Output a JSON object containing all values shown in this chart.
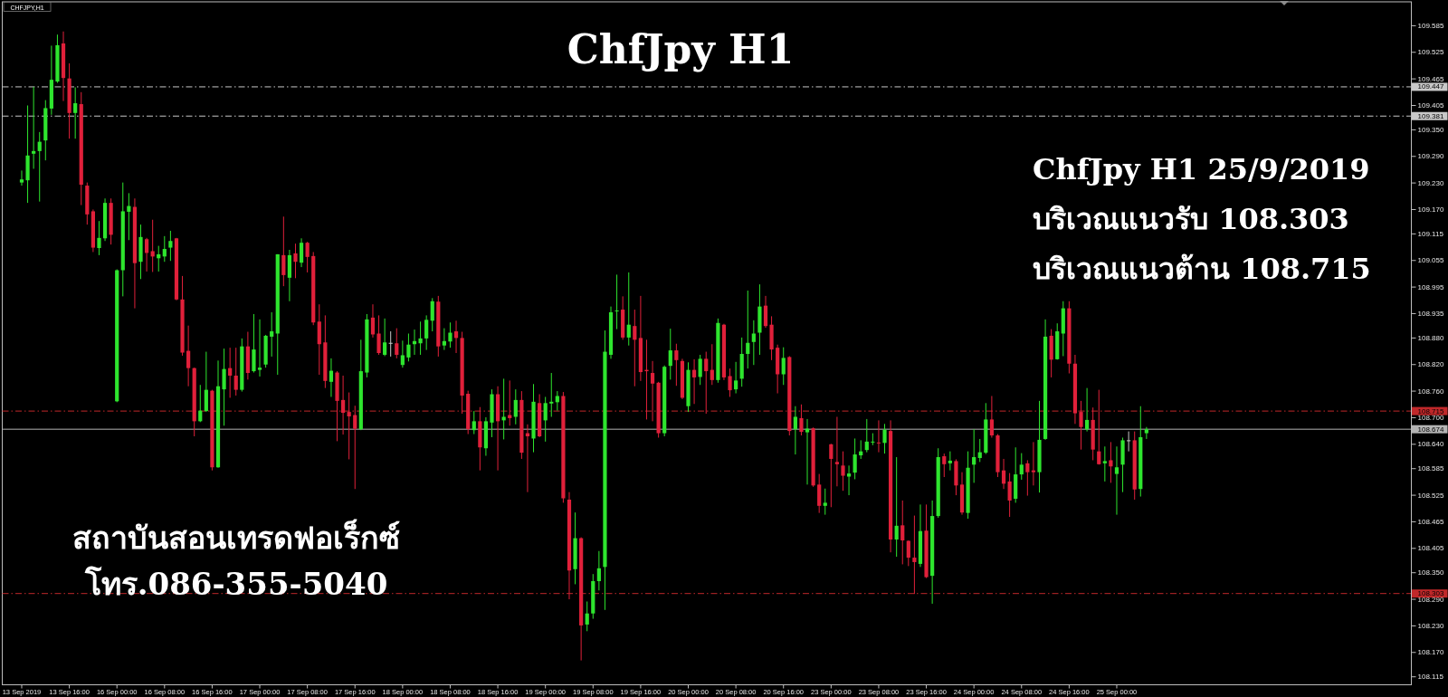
{
  "chart_data": {
    "type": "candlestick",
    "title": "ChfJpy H1",
    "categories": [
      "13 Sep 2019",
      null,
      null,
      null,
      null,
      null,
      null,
      null,
      "13 Sep 16:00",
      null,
      null,
      null,
      null,
      null,
      null,
      null,
      "16 Sep 00:00",
      null,
      null,
      null,
      null,
      null,
      null,
      null,
      "16 Sep 08:00",
      null,
      null,
      null,
      null,
      null,
      null,
      null,
      "16 Sep 16:00",
      null,
      null,
      null,
      null,
      null,
      null,
      null,
      "17 Sep 00:00",
      null,
      null,
      null,
      null,
      null,
      null,
      null,
      "17 Sep 08:00",
      null,
      null,
      null,
      null,
      null,
      null,
      null,
      "17 Sep 16:00",
      null,
      null,
      null,
      null,
      null,
      null,
      null,
      "18 Sep 00:00",
      null,
      null,
      null,
      null,
      null,
      null,
      null,
      "18 Sep 08:00",
      null,
      null,
      null,
      null,
      null,
      null,
      null,
      "18 Sep 16:00",
      null,
      null,
      null,
      null,
      null,
      null,
      null,
      "19 Sep 00:00",
      null,
      null,
      null,
      null,
      null,
      null,
      null,
      "19 Sep 08:00",
      null,
      null,
      null,
      null,
      null,
      null,
      null,
      "19 Sep 16:00",
      null,
      null,
      null,
      null,
      null,
      null,
      null,
      "20 Sep 00:00",
      null,
      null,
      null,
      null,
      null,
      null,
      null,
      "20 Sep 08:00",
      null,
      null,
      null,
      null,
      null,
      null,
      null,
      "20 Sep 16:00",
      null,
      null,
      null,
      null,
      null,
      null,
      null,
      "23 Sep 00:00",
      null,
      null,
      null,
      null,
      null,
      null,
      null,
      "23 Sep 08:00",
      null,
      null,
      null,
      null,
      null,
      null,
      null,
      "23 Sep 16:00",
      null,
      null,
      null,
      null,
      null,
      null,
      null,
      "24 Sep 00:00",
      null,
      null,
      null,
      null,
      null,
      null,
      null,
      "24 Sep 08:00",
      null,
      null,
      null,
      null,
      null,
      null,
      null,
      "24 Sep 16:00",
      null,
      null,
      null,
      null,
      null,
      null,
      null,
      "25 Sep 00:00",
      null,
      null,
      null,
      null,
      null,
      null,
      null,
      null,
      null,
      null,
      null,
      null,
      null,
      null,
      null,
      null,
      null,
      null,
      null,
      null,
      null,
      null,
      null,
      null,
      null,
      null,
      null,
      null,
      null,
      null,
      null,
      null,
      null,
      null,
      null,
      null,
      null,
      null,
      null,
      null,
      null,
      null,
      null,
      null,
      null,
      null,
      null,
      null,
      null
    ],
    "ohlc": [
      [
        109.231,
        109.258,
        109.224,
        109.238
      ],
      [
        109.236,
        109.405,
        109.185,
        109.292
      ],
      [
        109.296,
        109.447,
        109.262,
        109.302
      ],
      [
        109.302,
        109.345,
        109.188,
        109.323
      ],
      [
        109.326,
        109.417,
        109.281,
        109.399
      ],
      [
        109.398,
        109.54,
        109.384,
        109.463
      ],
      [
        109.459,
        109.565,
        109.456,
        109.541
      ],
      [
        109.545,
        109.572,
        109.415,
        109.467
      ],
      [
        109.466,
        109.5,
        109.33,
        109.388
      ],
      [
        109.388,
        109.446,
        109.33,
        109.41
      ],
      [
        109.408,
        109.435,
        109.18,
        109.226
      ],
      [
        109.224,
        109.231,
        109.136,
        109.159
      ],
      [
        109.166,
        109.17,
        109.074,
        109.084
      ],
      [
        109.083,
        109.144,
        109.067,
        109.106
      ],
      [
        109.105,
        109.195,
        109.099,
        109.185
      ],
      [
        109.185,
        109.195,
        109.091,
        109.113
      ],
      [
        108.737,
        109.035,
        108.735,
        109.033
      ],
      [
        109.033,
        109.231,
        108.974,
        109.166
      ],
      [
        109.165,
        109.207,
        109.101,
        109.178
      ],
      [
        109.176,
        109.195,
        108.947,
        109.049
      ],
      [
        109.052,
        109.136,
        109.013,
        109.108
      ],
      [
        109.103,
        109.106,
        109.03,
        109.072
      ],
      [
        109.076,
        109.147,
        109.029,
        109.064
      ],
      [
        109.06,
        109.088,
        109.03,
        109.069
      ],
      [
        109.064,
        109.11,
        109.052,
        109.081
      ],
      [
        109.084,
        109.122,
        109.054,
        109.099
      ],
      [
        109.105,
        109.106,
        108.965,
        108.967
      ],
      [
        108.967,
        109.02,
        108.84,
        108.847
      ],
      [
        108.851,
        108.908,
        108.771,
        108.812
      ],
      [
        108.812,
        108.813,
        108.658,
        108.692
      ],
      [
        108.692,
        108.774,
        108.69,
        108.716
      ],
      [
        108.715,
        108.849,
        108.713,
        108.763
      ],
      [
        108.761,
        108.763,
        108.581,
        108.588
      ],
      [
        108.588,
        108.829,
        108.587,
        108.771
      ],
      [
        108.764,
        108.856,
        108.682,
        108.81
      ],
      [
        108.812,
        108.858,
        108.745,
        108.795
      ],
      [
        108.795,
        108.858,
        108.75,
        108.763
      ],
      [
        108.763,
        108.879,
        108.759,
        108.861
      ],
      [
        108.861,
        108.894,
        108.786,
        108.801
      ],
      [
        108.805,
        108.934,
        108.802,
        108.854
      ],
      [
        108.808,
        108.922,
        108.793,
        108.813
      ],
      [
        108.82,
        108.887,
        108.813,
        108.885
      ],
      [
        108.883,
        108.938,
        108.838,
        108.895
      ],
      [
        108.89,
        109.069,
        108.797,
        109.069
      ],
      [
        109.067,
        109.154,
        108.997,
        109.022
      ],
      [
        109.016,
        109.079,
        108.963,
        109.067
      ],
      [
        109.071,
        109.093,
        109.015,
        109.052
      ],
      [
        109.05,
        109.105,
        109.04,
        109.095
      ],
      [
        109.095,
        109.097,
        109.028,
        109.063
      ],
      [
        109.065,
        109.074,
        108.909,
        108.915
      ],
      [
        108.917,
        108.956,
        108.797,
        108.866
      ],
      [
        108.87,
        108.931,
        108.767,
        108.783
      ],
      [
        108.781,
        108.834,
        108.747,
        108.806
      ],
      [
        108.802,
        108.805,
        108.647,
        108.738
      ],
      [
        108.74,
        108.795,
        108.662,
        108.711
      ],
      [
        108.713,
        108.757,
        108.606,
        108.703
      ],
      [
        108.706,
        108.727,
        108.539,
        108.675
      ],
      [
        108.674,
        108.876,
        108.672,
        108.805
      ],
      [
        108.802,
        108.934,
        108.791,
        108.922
      ],
      [
        108.926,
        108.956,
        108.881,
        108.888
      ],
      [
        108.89,
        108.931,
        108.842,
        108.846
      ],
      [
        108.842,
        108.924,
        108.839,
        108.87
      ],
      [
        108.868,
        108.895,
        108.838,
        108.868
      ],
      [
        108.868,
        108.902,
        108.834,
        108.842
      ],
      [
        108.819,
        108.874,
        108.813,
        108.841
      ],
      [
        108.836,
        108.89,
        108.827,
        108.865
      ],
      [
        108.866,
        108.899,
        108.842,
        108.873
      ],
      [
        108.868,
        108.917,
        108.842,
        108.879
      ],
      [
        108.879,
        108.931,
        108.853,
        108.921
      ],
      [
        108.919,
        108.97,
        108.895,
        108.963
      ],
      [
        108.962,
        108.975,
        108.838,
        108.861
      ],
      [
        108.863,
        108.902,
        108.853,
        108.873
      ],
      [
        108.872,
        108.915,
        108.858,
        108.892
      ],
      [
        108.895,
        108.919,
        108.846,
        108.88
      ],
      [
        108.88,
        108.894,
        108.709,
        108.75
      ],
      [
        108.754,
        108.761,
        108.663,
        108.674
      ],
      [
        108.672,
        108.715,
        108.663,
        108.692
      ],
      [
        108.692,
        108.724,
        108.581,
        108.633
      ],
      [
        108.631,
        108.701,
        108.614,
        108.692
      ],
      [
        108.689,
        108.764,
        108.656,
        108.753
      ],
      [
        108.753,
        108.771,
        108.581,
        108.692
      ],
      [
        108.694,
        108.788,
        108.651,
        108.702
      ],
      [
        108.706,
        108.784,
        108.682,
        108.699
      ],
      [
        108.702,
        108.764,
        108.685,
        108.74
      ],
      [
        108.74,
        108.76,
        108.607,
        108.621
      ],
      [
        108.665,
        108.685,
        108.532,
        108.658
      ],
      [
        108.653,
        108.776,
        108.622,
        108.736
      ],
      [
        108.733,
        108.753,
        108.656,
        108.658
      ],
      [
        108.694,
        108.747,
        108.646,
        108.733
      ],
      [
        108.732,
        108.801,
        108.702,
        108.736
      ],
      [
        108.735,
        108.76,
        108.716,
        108.749
      ],
      [
        108.749,
        108.758,
        108.508,
        108.518
      ],
      [
        108.515,
        108.532,
        108.29,
        108.355
      ],
      [
        108.358,
        108.486,
        108.324,
        108.428
      ],
      [
        108.428,
        108.43,
        108.152,
        108.231
      ],
      [
        108.233,
        108.285,
        108.218,
        108.258
      ],
      [
        108.258,
        108.347,
        108.246,
        108.331
      ],
      [
        108.331,
        108.399,
        108.31,
        108.36
      ],
      [
        108.363,
        108.897,
        108.266,
        108.849
      ],
      [
        108.842,
        108.951,
        108.833,
        108.938
      ],
      [
        108.94,
        109.023,
        108.9,
        108.942
      ],
      [
        108.944,
        108.974,
        108.876,
        108.881
      ],
      [
        108.881,
        109.028,
        108.863,
        108.91
      ],
      [
        108.907,
        108.944,
        108.771,
        108.876
      ],
      [
        108.88,
        108.975,
        108.783,
        108.803
      ],
      [
        108.808,
        108.876,
        108.696,
        108.805
      ],
      [
        108.801,
        108.828,
        108.692,
        108.777
      ],
      [
        108.779,
        108.781,
        108.655,
        108.665
      ],
      [
        108.665,
        108.818,
        108.658,
        108.815
      ],
      [
        108.817,
        108.901,
        108.786,
        108.852
      ],
      [
        108.852,
        108.867,
        108.772,
        108.83
      ],
      [
        108.828,
        108.833,
        108.742,
        108.745
      ],
      [
        108.726,
        108.825,
        108.713,
        108.808
      ],
      [
        108.808,
        108.832,
        108.731,
        108.791
      ],
      [
        108.792,
        108.842,
        108.774,
        108.833
      ],
      [
        108.833,
        108.849,
        108.709,
        108.805
      ],
      [
        108.808,
        108.866,
        108.774,
        108.785
      ],
      [
        108.785,
        108.924,
        108.779,
        108.914
      ],
      [
        108.91,
        108.912,
        108.785,
        108.791
      ],
      [
        108.794,
        108.811,
        108.747,
        108.762
      ],
      [
        108.764,
        108.826,
        108.755,
        108.784
      ],
      [
        108.788,
        108.881,
        108.77,
        108.844
      ],
      [
        108.844,
        108.987,
        108.811,
        108.869
      ],
      [
        108.871,
        108.92,
        108.819,
        108.89
      ],
      [
        108.892,
        109.001,
        108.842,
        108.951
      ],
      [
        108.953,
        108.975,
        108.903,
        108.907
      ],
      [
        108.91,
        108.929,
        108.83,
        108.854
      ],
      [
        108.858,
        108.865,
        108.755,
        108.798
      ],
      [
        108.798,
        108.859,
        108.774,
        108.835
      ],
      [
        108.837,
        108.839,
        108.66,
        108.67
      ],
      [
        108.674,
        108.726,
        108.617,
        108.702
      ],
      [
        108.699,
        108.73,
        108.66,
        108.668
      ],
      [
        108.667,
        108.697,
        108.549,
        108.675
      ],
      [
        108.676,
        108.678,
        108.544,
        108.547
      ],
      [
        108.549,
        108.573,
        108.485,
        108.501
      ],
      [
        108.501,
        108.54,
        108.481,
        108.508
      ],
      [
        108.64,
        108.641,
        108.498,
        108.607
      ],
      [
        108.6,
        108.702,
        108.545,
        108.595
      ],
      [
        108.592,
        108.624,
        108.535,
        108.569
      ],
      [
        108.567,
        108.592,
        108.525,
        108.574
      ],
      [
        108.576,
        108.653,
        108.561,
        108.617
      ],
      [
        108.615,
        108.649,
        108.607,
        108.624
      ],
      [
        108.627,
        108.697,
        108.622,
        108.646
      ],
      [
        108.644,
        108.665,
        108.638,
        108.646
      ],
      [
        108.644,
        108.694,
        108.622,
        108.642
      ],
      [
        108.643,
        108.686,
        108.619,
        108.673
      ],
      [
        108.67,
        108.694,
        108.396,
        108.425
      ],
      [
        108.425,
        108.611,
        108.386,
        108.456
      ],
      [
        108.457,
        108.513,
        108.369,
        108.423
      ],
      [
        108.422,
        108.423,
        108.365,
        108.384
      ],
      [
        108.384,
        108.479,
        108.302,
        108.374
      ],
      [
        108.37,
        108.504,
        108.363,
        108.444
      ],
      [
        108.445,
        108.504,
        108.338,
        108.34
      ],
      [
        108.343,
        108.513,
        108.28,
        108.478
      ],
      [
        108.478,
        108.631,
        108.474,
        108.611
      ],
      [
        108.613,
        108.619,
        108.566,
        108.595
      ],
      [
        108.597,
        108.624,
        108.581,
        108.603
      ],
      [
        108.602,
        108.606,
        108.525,
        108.547
      ],
      [
        108.549,
        108.577,
        108.481,
        108.486
      ],
      [
        108.485,
        108.624,
        108.472,
        108.587
      ],
      [
        108.594,
        108.674,
        108.553,
        108.611
      ],
      [
        108.609,
        108.652,
        108.6,
        108.622
      ],
      [
        108.621,
        108.733,
        108.618,
        108.696
      ],
      [
        108.696,
        108.749,
        108.655,
        108.66
      ],
      [
        108.66,
        108.663,
        108.566,
        108.577
      ],
      [
        108.581,
        108.607,
        108.539,
        108.551
      ],
      [
        108.556,
        108.575,
        108.476,
        108.513
      ],
      [
        108.517,
        108.633,
        108.508,
        108.572
      ],
      [
        108.572,
        108.62,
        108.56,
        108.594
      ],
      [
        108.597,
        108.604,
        108.524,
        108.577
      ],
      [
        108.581,
        108.645,
        108.547,
        108.577
      ],
      [
        108.577,
        108.738,
        108.531,
        108.65
      ],
      [
        108.652,
        108.922,
        108.65,
        108.883
      ],
      [
        108.885,
        108.9,
        108.791,
        108.831
      ],
      [
        108.832,
        108.913,
        108.831,
        108.895
      ],
      [
        108.89,
        108.963,
        108.839,
        108.947
      ],
      [
        108.947,
        108.963,
        108.8,
        108.822
      ],
      [
        108.822,
        108.842,
        108.686,
        108.71
      ],
      [
        108.713,
        108.738,
        108.628,
        108.679
      ],
      [
        108.674,
        108.767,
        108.669,
        108.695
      ],
      [
        108.695,
        108.723,
        108.604,
        108.628
      ],
      [
        108.624,
        108.763,
        108.594,
        108.595
      ],
      [
        108.597,
        108.635,
        108.556,
        108.602
      ],
      [
        108.604,
        108.645,
        108.553,
        108.59
      ],
      [
        108.573,
        108.635,
        108.481,
        108.588
      ],
      [
        108.594,
        108.655,
        108.532,
        108.649
      ],
      [
        108.648,
        108.669,
        108.624,
        108.648
      ],
      [
        108.649,
        108.669,
        108.515,
        108.538
      ],
      [
        108.539,
        108.726,
        108.522,
        108.656
      ],
      [
        108.665,
        108.679,
        108.652,
        108.674
      ],
      null,
      null,
      null,
      null,
      null,
      null,
      null,
      null,
      null,
      null,
      null,
      null,
      null,
      null,
      null,
      null,
      null,
      null,
      null,
      null,
      null,
      null,
      null,
      null,
      null,
      null,
      null,
      null,
      null,
      null,
      null,
      null,
      null,
      null,
      null,
      null,
      null,
      null,
      null,
      null,
      null,
      null,
      null,
      null
    ],
    "colors": [
      "#2ee52e",
      "#2ee52e",
      "#2ee52e",
      "#2ee52e",
      "#2ee52e",
      "#2ee52e",
      "#2ee52e",
      "#e0203a",
      "#e0203a",
      "#2ee52e",
      "#e0203a",
      "#e0203a",
      "#e0203a",
      "#2ee52e",
      "#2ee52e",
      "#e0203a",
      "#2ee52e",
      "#2ee52e",
      "#2ee52e",
      "#e0203a",
      "#2ee52e",
      "#e0203a",
      "#e0203a",
      "#2ee52e",
      "#2ee52e",
      "#2ee52e",
      "#e0203a",
      "#e0203a",
      "#e0203a",
      "#e0203a",
      "#2ee52e",
      "#2ee52e",
      "#e0203a",
      "#2ee52e",
      "#2ee52e",
      "#e0203a",
      "#e0203a",
      "#2ee52e",
      "#e0203a",
      "#2ee52e",
      "#2ee52e",
      "#2ee52e",
      "#2ee52e",
      "#2ee52e",
      "#e0203a",
      "#2ee52e",
      "#e0203a",
      "#2ee52e",
      "#e0203a",
      "#e0203a",
      "#e0203a",
      "#e0203a",
      "#2ee52e",
      "#e0203a",
      "#e0203a",
      "#e0203a",
      "#e0203a",
      "#2ee52e",
      "#2ee52e",
      "#e0203a",
      "#e0203a",
      "#2ee52e",
      "#c8c8c8",
      "#e0203a",
      "#2ee52e",
      "#2ee52e",
      "#2ee52e",
      "#2ee52e",
      "#2ee52e",
      "#2ee52e",
      "#e0203a",
      "#2ee52e",
      "#2ee52e",
      "#e0203a",
      "#e0203a",
      "#e0203a",
      "#2ee52e",
      "#e0203a",
      "#2ee52e",
      "#2ee52e",
      "#e0203a",
      "#2ee52e",
      "#e0203a",
      "#2ee52e",
      "#e0203a",
      "#e0203a",
      "#2ee52e",
      "#e0203a",
      "#2ee52e",
      "#2ee52e",
      "#2ee52e",
      "#e0203a",
      "#e0203a",
      "#2ee52e",
      "#e0203a",
      "#2ee52e",
      "#2ee52e",
      "#2ee52e",
      "#2ee52e",
      "#2ee52e",
      "#2ee52e",
      "#e0203a",
      "#2ee52e",
      "#e0203a",
      "#e0203a",
      "#e0203a",
      "#e0203a",
      "#e0203a",
      "#2ee52e",
      "#2ee52e",
      "#e0203a",
      "#e0203a",
      "#2ee52e",
      "#e0203a",
      "#2ee52e",
      "#e0203a",
      "#e0203a",
      "#2ee52e",
      "#e0203a",
      "#e0203a",
      "#2ee52e",
      "#2ee52e",
      "#2ee52e",
      "#2ee52e",
      "#2ee52e",
      "#e0203a",
      "#e0203a",
      "#e0203a",
      "#2ee52e",
      "#e0203a",
      "#2ee52e",
      "#e0203a",
      "#2ee52e",
      "#e0203a",
      "#e0203a",
      "#2ee52e",
      "#e0203a",
      "#e0203a",
      "#e0203a",
      "#2ee52e",
      "#2ee52e",
      "#2ee52e",
      "#2ee52e",
      "#2ee52e",
      "#e0203a",
      "#2ee52e",
      "#e0203a",
      "#2ee52e",
      "#e0203a",
      "#e0203a",
      "#e0203a",
      "#2ee52e",
      "#e0203a",
      "#2ee52e",
      "#2ee52e",
      "#e0203a",
      "#2ee52e",
      "#e0203a",
      "#e0203a",
      "#2ee52e",
      "#2ee52e",
      "#2ee52e",
      "#2ee52e",
      "#e0203a",
      "#e0203a",
      "#e0203a",
      "#e0203a",
      "#2ee52e",
      "#2ee52e",
      "#e0203a",
      "#e0203a",
      "#2ee52e",
      "#2ee52e",
      "#e0203a",
      "#2ee52e",
      "#2ee52e",
      "#e0203a",
      "#e0203a",
      "#e0203a",
      "#2ee52e",
      "#e0203a",
      "#e0203a",
      "#2ee52e",
      "#e0203a",
      "#2ee52e",
      "#2ee52e",
      "#c8c8c8",
      "#e0203a",
      "#2ee52e",
      "#2ee52e",
      null,
      null,
      null,
      null,
      null,
      null,
      null,
      null,
      null,
      null,
      null,
      null,
      null,
      null,
      null,
      null,
      null,
      null,
      null,
      null,
      null,
      null,
      null,
      null,
      null,
      null,
      null,
      null,
      null,
      null,
      null,
      null,
      null,
      null,
      null,
      null,
      null,
      null,
      null,
      null,
      null,
      null,
      null,
      null
    ],
    "ylim": [
      108.097,
      109.639
    ],
    "yticks": [
      109.585,
      109.525,
      109.465,
      109.405,
      {
        "value": 109.35,
        "label": "109.350"
      },
      {
        "value": 109.29,
        "label": "109.290"
      },
      {
        "value": 109.23,
        "label": "109.230"
      },
      {
        "value": 109.17,
        "label": "109.170"
      },
      109.115,
      109.055,
      108.995,
      108.935,
      {
        "value": 108.88,
        "label": "108.880"
      },
      {
        "value": 108.82,
        "label": "108.820"
      },
      {
        "value": 108.76,
        "label": "108.760"
      },
      {
        "value": 108.7,
        "label": "108.700"
      },
      {
        "value": 108.64,
        "label": "108.640"
      },
      108.585,
      108.525,
      108.465,
      108.405,
      {
        "value": 108.35,
        "label": "108.350"
      },
      {
        "value": 108.29,
        "label": "108.290"
      },
      {
        "value": 108.23,
        "label": "108.230"
      },
      {
        "value": 108.17,
        "label": "108.170"
      },
      108.115
    ],
    "ref_lines": [
      {
        "axis": "y",
        "value": 109.447,
        "label": "109.447",
        "color": "#c8c8c8",
        "line_style": "dashed"
      },
      {
        "axis": "y",
        "value": 109.381,
        "label": "109.381",
        "color": "#c8c8c8",
        "line_style": "dashed"
      },
      {
        "axis": "y",
        "value": 108.715,
        "label": "108.715",
        "color": "#c0282a",
        "line_style": "dashed"
      },
      {
        "axis": "y",
        "value": 108.674,
        "label": "108.674",
        "color": "#b4b4b4",
        "line_style": "solid"
      },
      {
        "axis": "y",
        "value": 108.303,
        "label": "108.303",
        "color": "#c0282a",
        "line_style": "dashed"
      }
    ],
    "annotations": [
      "CHFJPY,H1",
      "ChfJpy H1 25/9/2019",
      "บริเวณแนวรับ 108.303",
      "บริเวณแนวต้าน 108.715",
      "สถาบันสอนเทรดฟอเร็กซ์",
      "โทร.086-355-5040"
    ]
  }
}
